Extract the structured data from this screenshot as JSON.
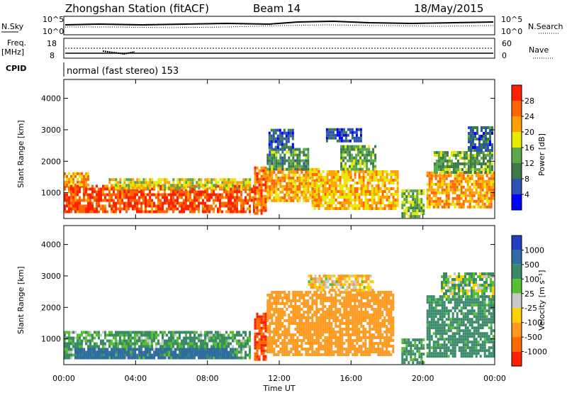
{
  "header": {
    "title": "Zhongshan Station (fitACF)",
    "beam": "Beam 14",
    "date": "18/May/2015"
  },
  "strips": {
    "nsky_label": "N.Sky",
    "nsearch_label": "N.Search",
    "freq_label_1": "Freq.",
    "freq_label_2": "[MHz]",
    "nave_label": "Nave",
    "cpid_label": "CPID",
    "cpid_value": "normal (fast stereo) 153",
    "noise_ticks_left": [
      "10^5",
      "10^0"
    ],
    "noise_ticks_right": [
      "10^5",
      "10^0"
    ],
    "freq_ticks_left": [
      "18",
      "8"
    ],
    "nave_ticks_right": [
      "60",
      "0"
    ]
  },
  "x_axis": {
    "label": "Time UT",
    "ticks": [
      "00:00",
      "04:00",
      "08:00",
      "12:00",
      "16:00",
      "20:00",
      "00:00"
    ],
    "range_hours": [
      0,
      24
    ]
  },
  "power_panel": {
    "ylabel": "Slant Range [km]",
    "yticks": [
      "1000",
      "2000",
      "3000",
      "4000"
    ],
    "yrange_km": [
      180,
      4600
    ],
    "colorbar_label": "Power [dB]",
    "colorbar_ticks": [
      "4",
      "8",
      "12",
      "16",
      "20",
      "24",
      "28"
    ],
    "colorbar_range": [
      0,
      32
    ],
    "colors": [
      "#0000ff",
      "#2a52b5",
      "#3c7a4a",
      "#5aa84a",
      "#e8e800",
      "#ffa000",
      "#ff6600",
      "#ff2000"
    ]
  },
  "velocity_panel": {
    "ylabel": "Slant Range [km]",
    "yticks": [
      "1000",
      "2000",
      "3000",
      "4000"
    ],
    "yrange_km": [
      180,
      4600
    ],
    "colorbar_label": "Velocity [m s⁻¹]",
    "colorbar_ticks": [
      "1000",
      "500",
      "100",
      "25",
      "-25",
      "-100",
      "-500",
      "-1000"
    ],
    "colors": [
      "#2040c0",
      "#2f6aa0",
      "#3a8a6a",
      "#56c030",
      "#c8c8c8",
      "#ffd000",
      "#ff9a20",
      "#ff6a00",
      "#ff2000"
    ]
  },
  "chart_data": {
    "type": "heatmap",
    "title": "Zhongshan Station (fitACF)",
    "xlabel": "Time UT",
    "ylabel": "Slant Range [km]",
    "x_range": [
      0,
      24
    ],
    "y_range": [
      180,
      4600
    ],
    "power_regions": [
      {
        "t0": 0.0,
        "t1": 10.6,
        "r0": 350,
        "r1": 1200,
        "power_db": 28
      },
      {
        "t0": 0.0,
        "t1": 1.4,
        "r0": 1200,
        "r1": 1650,
        "power_db": 22
      },
      {
        "t0": 2.5,
        "t1": 10.4,
        "r0": 1100,
        "r1": 1450,
        "power_db": 18
      },
      {
        "t0": 10.6,
        "t1": 11.3,
        "r0": 300,
        "r1": 1800,
        "power_db": 26
      },
      {
        "t0": 11.3,
        "t1": 14.2,
        "r0": 700,
        "r1": 1700,
        "power_db": 22
      },
      {
        "t0": 11.3,
        "t1": 13.6,
        "r0": 1700,
        "r1": 2400,
        "power_db": 12
      },
      {
        "t0": 11.4,
        "t1": 12.8,
        "r0": 2400,
        "r1": 3000,
        "power_db": 7
      },
      {
        "t0": 13.8,
        "t1": 18.6,
        "r0": 450,
        "r1": 1700,
        "power_db": 21
      },
      {
        "t0": 15.4,
        "t1": 17.4,
        "r0": 1700,
        "r1": 2500,
        "power_db": 13
      },
      {
        "t0": 14.6,
        "t1": 16.6,
        "r0": 2600,
        "r1": 3000,
        "power_db": 6
      },
      {
        "t0": 18.8,
        "t1": 20.0,
        "r0": 200,
        "r1": 1100,
        "power_db": 14
      },
      {
        "t0": 20.2,
        "t1": 23.9,
        "r0": 500,
        "r1": 1600,
        "power_db": 23
      },
      {
        "t0": 20.6,
        "t1": 23.9,
        "r0": 1600,
        "r1": 2300,
        "power_db": 13
      },
      {
        "t0": 22.5,
        "t1": 23.9,
        "r0": 2300,
        "r1": 3100,
        "power_db": 8
      }
    ],
    "velocity_regions": [
      {
        "t0": 0.0,
        "t1": 10.4,
        "r0": 350,
        "r1": 1200,
        "velocity": 120
      },
      {
        "t0": 0.6,
        "t1": 9.5,
        "r0": 350,
        "r1": 700,
        "velocity": 700
      },
      {
        "t0": 10.6,
        "t1": 11.3,
        "r0": 300,
        "r1": 1800,
        "velocity": -1000
      },
      {
        "t0": 11.3,
        "t1": 18.4,
        "r0": 450,
        "r1": 2500,
        "velocity": -300
      },
      {
        "t0": 13.6,
        "t1": 17.2,
        "r0": 2500,
        "r1": 3000,
        "velocity": -80
      },
      {
        "t0": 18.8,
        "t1": 20.0,
        "r0": 200,
        "r1": 1000,
        "velocity": 150
      },
      {
        "t0": 20.2,
        "t1": 23.9,
        "r0": 400,
        "r1": 2300,
        "velocity": 200
      },
      {
        "t0": 21.0,
        "t1": 23.9,
        "r0": 2300,
        "r1": 3100,
        "velocity": 60
      }
    ]
  }
}
